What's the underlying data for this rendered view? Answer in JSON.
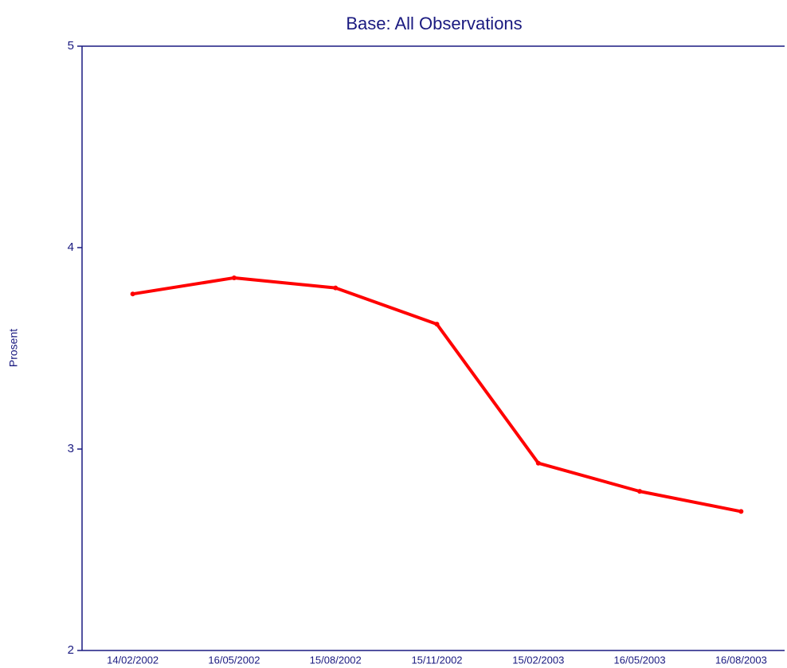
{
  "chart_data": {
    "type": "line",
    "title": "Base:  All Observations",
    "y_label": "Prosent",
    "categories": [
      "14/02/2002",
      "16/05/2002",
      "15/08/2002",
      "15/11/2002",
      "15/02/2003",
      "16/05/2003",
      "16/08/2003"
    ],
    "series": [
      {
        "name": "Base",
        "color": "#ff0000",
        "values": [
          3.77,
          3.85,
          3.8,
          3.62,
          2.93,
          2.79,
          2.69
        ]
      }
    ],
    "ylim": [
      2,
      5
    ],
    "yticks": [
      2,
      3,
      4,
      5
    ],
    "grid": false
  }
}
